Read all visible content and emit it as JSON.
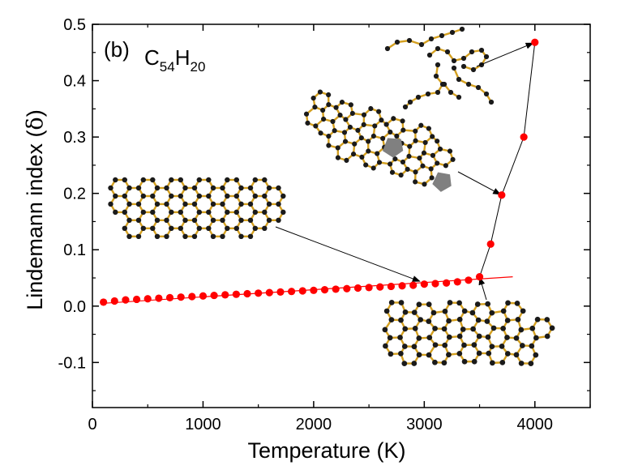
{
  "chart_data": {
    "type": "scatter",
    "panel_label": "(b)",
    "title_parts": {
      "c": "C",
      "c_sub": "54",
      "h": "H",
      "h_sub": "20"
    },
    "xlabel": "Temperature (K)",
    "ylabel_text": "Lindemann index (",
    "ylabel_symbol": "δ",
    "ylabel_close": ")",
    "xlim": [
      0,
      4500
    ],
    "ylim": [
      -0.18,
      0.5
    ],
    "xticks": [
      0,
      1000,
      2000,
      3000,
      4000
    ],
    "yticks": [
      -0.1,
      0.0,
      0.1,
      0.2,
      0.3,
      0.4,
      0.5
    ],
    "xtick_labels": [
      "0",
      "1000",
      "2000",
      "3000",
      "4000"
    ],
    "ytick_labels": [
      "-0.1",
      "0.0",
      "0.1",
      "0.2",
      "0.3",
      "0.4",
      "0.5"
    ],
    "grid": false,
    "legend": "none",
    "colors": {
      "points": "#ff0000",
      "fit_line": "#ff0000",
      "connector": "#000000"
    },
    "series": [
      {
        "x": [
          100,
          200,
          300,
          400,
          500,
          600,
          700,
          800,
          900,
          1000,
          1100,
          1200,
          1300,
          1400,
          1500,
          1600,
          1700,
          1800,
          1900,
          2000,
          2100,
          2200,
          2300,
          2400,
          2500,
          2600,
          2700,
          2800,
          2900,
          3000,
          3100,
          3200,
          3300,
          3400,
          3500,
          3600,
          3700,
          3900,
          4000
        ],
        "y": [
          0.007,
          0.009,
          0.011,
          0.012,
          0.013,
          0.014,
          0.015,
          0.016,
          0.017,
          0.018,
          0.019,
          0.02,
          0.021,
          0.022,
          0.023,
          0.024,
          0.025,
          0.026,
          0.027,
          0.028,
          0.029,
          0.03,
          0.031,
          0.032,
          0.033,
          0.034,
          0.035,
          0.036,
          0.037,
          0.039,
          0.04,
          0.041,
          0.043,
          0.046,
          0.052,
          0.11,
          0.197,
          0.3,
          0.468
        ]
      }
    ],
    "fit_line": {
      "x": [
        100,
        3800
      ],
      "y": [
        0.005,
        0.052
      ]
    },
    "connector_from_x": 3500
  }
}
